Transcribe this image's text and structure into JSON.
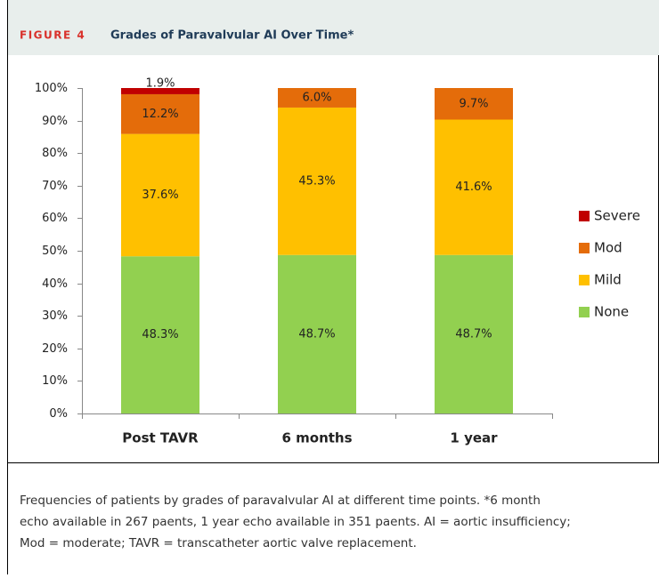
{
  "figure_label": "FIGURE 4",
  "caption": [
    "Frequencies of patients by grades of paravalvular AI at different time points. *6 month",
    "echo available in 267 paents, 1 year echo available in 351 paents. AI = aortic insufficiency;",
    "Mod = moderate; TAVR = transcatheter aortic valve replacement."
  ],
  "chart_data": {
    "type": "stacked_bar",
    "title": "Grades of Paravalvular AI Over Time*",
    "categories": [
      "Post TAVR",
      "6 months",
      "1 year"
    ],
    "series": [
      {
        "name": "None",
        "color": "#92d050",
        "values": [
          48.3,
          48.7,
          48.7
        ],
        "value_labels": [
          "48.3%",
          "48.7%",
          "48.7%"
        ]
      },
      {
        "name": "Mild",
        "color": "#ffc000",
        "values": [
          37.6,
          45.3,
          41.6
        ],
        "value_labels": [
          "37.6%",
          "45.3%",
          "41.6%"
        ]
      },
      {
        "name": "Mod",
        "color": "#e46c0a",
        "values": [
          12.2,
          6.0,
          9.7
        ],
        "value_labels": [
          "12.2%",
          "6.0%",
          "9.7%"
        ]
      },
      {
        "name": "Severe",
        "color": "#c00000",
        "values": [
          1.9,
          null,
          null
        ],
        "value_labels": [
          "1.9%",
          null,
          null
        ]
      }
    ],
    "ylim": [
      0,
      100
    ],
    "yticks": [
      {
        "value": 0,
        "label": "0%"
      },
      {
        "value": 10,
        "label": "10%"
      },
      {
        "value": 20,
        "label": "20%"
      },
      {
        "value": 30,
        "label": "30%"
      },
      {
        "value": 40,
        "label": "40%"
      },
      {
        "value": 50,
        "label": "50%"
      },
      {
        "value": 60,
        "label": "60%"
      },
      {
        "value": 70,
        "label": "70%"
      },
      {
        "value": 80,
        "label": "80%"
      },
      {
        "value": 90,
        "label": "90%"
      },
      {
        "value": 100,
        "label": "100%"
      }
    ],
    "legend": "right"
  }
}
